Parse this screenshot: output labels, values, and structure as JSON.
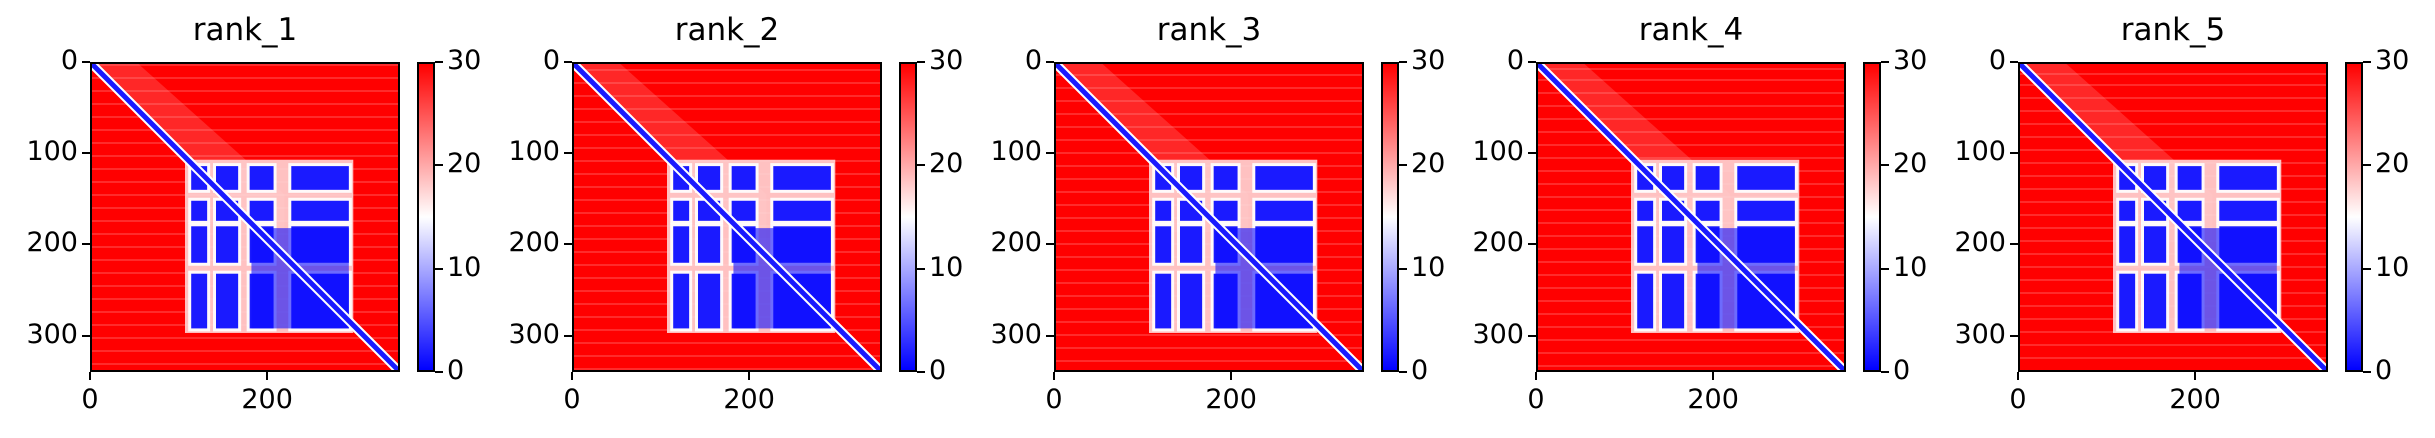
{
  "chart_data": [
    {
      "type": "heatmap",
      "title": "rank_1",
      "xticks": [
        "0",
        "200"
      ],
      "yticks": [
        "0",
        "100",
        "200",
        "300"
      ],
      "xlim": [
        0,
        350
      ],
      "ylim": [
        340,
        0
      ],
      "colorbar": {
        "ticks": [
          "0",
          "10",
          "20",
          "30"
        ],
        "range": [
          0,
          30
        ],
        "colors": [
          "#0000ff",
          "#ffffff",
          "#ff0000"
        ]
      },
      "description_blocks": {
        "diagonal": true,
        "low_distance_bands_y": [
          [
            112,
            138
          ],
          [
            150,
            172
          ],
          [
            178,
            218
          ],
          [
            230,
            290
          ]
        ],
        "low_distance_bands_x": [
          [
            112,
            130
          ],
          [
            140,
            165
          ],
          [
            178,
            205
          ],
          [
            225,
            290
          ]
        ]
      }
    },
    {
      "type": "heatmap",
      "title": "rank_2",
      "xticks": [
        "0",
        "200"
      ],
      "yticks": [
        "0",
        "100",
        "200",
        "300"
      ],
      "xlim": [
        0,
        350
      ],
      "ylim": [
        340,
        0
      ],
      "colorbar": {
        "ticks": [
          "0",
          "10",
          "20",
          "30"
        ],
        "range": [
          0,
          30
        ],
        "colors": [
          "#0000ff",
          "#ffffff",
          "#ff0000"
        ]
      },
      "description_blocks": {
        "diagonal": true,
        "low_distance_bands_y": [
          [
            112,
            138
          ],
          [
            150,
            172
          ],
          [
            178,
            218
          ],
          [
            230,
            290
          ]
        ],
        "low_distance_bands_x": [
          [
            112,
            130
          ],
          [
            140,
            165
          ],
          [
            178,
            205
          ],
          [
            225,
            290
          ]
        ]
      }
    },
    {
      "type": "heatmap",
      "title": "rank_3",
      "xticks": [
        "0",
        "200"
      ],
      "yticks": [
        "0",
        "100",
        "200",
        "300"
      ],
      "xlim": [
        0,
        350
      ],
      "ylim": [
        340,
        0
      ],
      "colorbar": {
        "ticks": [
          "0",
          "10",
          "20",
          "30"
        ],
        "range": [
          0,
          30
        ],
        "colors": [
          "#0000ff",
          "#ffffff",
          "#ff0000"
        ]
      },
      "description_blocks": {
        "diagonal": true,
        "low_distance_bands_y": [
          [
            112,
            138
          ],
          [
            150,
            172
          ],
          [
            178,
            218
          ],
          [
            230,
            290
          ]
        ],
        "low_distance_bands_x": [
          [
            112,
            130
          ],
          [
            140,
            165
          ],
          [
            178,
            205
          ],
          [
            225,
            290
          ]
        ]
      }
    },
    {
      "type": "heatmap",
      "title": "rank_4",
      "xticks": [
        "0",
        "200"
      ],
      "yticks": [
        "0",
        "100",
        "200",
        "300"
      ],
      "xlim": [
        0,
        350
      ],
      "ylim": [
        340,
        0
      ],
      "colorbar": {
        "ticks": [
          "0",
          "10",
          "20",
          "30"
        ],
        "range": [
          0,
          30
        ],
        "colors": [
          "#0000ff",
          "#ffffff",
          "#ff0000"
        ]
      },
      "description_blocks": {
        "diagonal": true,
        "low_distance_bands_y": [
          [
            112,
            138
          ],
          [
            150,
            172
          ],
          [
            178,
            218
          ],
          [
            230,
            290
          ]
        ],
        "low_distance_bands_x": [
          [
            112,
            130
          ],
          [
            140,
            165
          ],
          [
            178,
            205
          ],
          [
            225,
            290
          ]
        ]
      }
    },
    {
      "type": "heatmap",
      "title": "rank_5",
      "xticks": [
        "0",
        "200"
      ],
      "yticks": [
        "0",
        "100",
        "200",
        "300"
      ],
      "xlim": [
        0,
        350
      ],
      "ylim": [
        340,
        0
      ],
      "colorbar": {
        "ticks": [
          "0",
          "10",
          "20",
          "30"
        ],
        "range": [
          0,
          30
        ],
        "colors": [
          "#0000ff",
          "#ffffff",
          "#ff0000"
        ]
      },
      "description_blocks": {
        "diagonal": true,
        "low_distance_bands_y": [
          [
            112,
            138
          ],
          [
            150,
            172
          ],
          [
            178,
            218
          ],
          [
            230,
            290
          ]
        ],
        "low_distance_bands_x": [
          [
            112,
            130
          ],
          [
            140,
            165
          ],
          [
            178,
            205
          ],
          [
            225,
            290
          ]
        ]
      }
    }
  ]
}
